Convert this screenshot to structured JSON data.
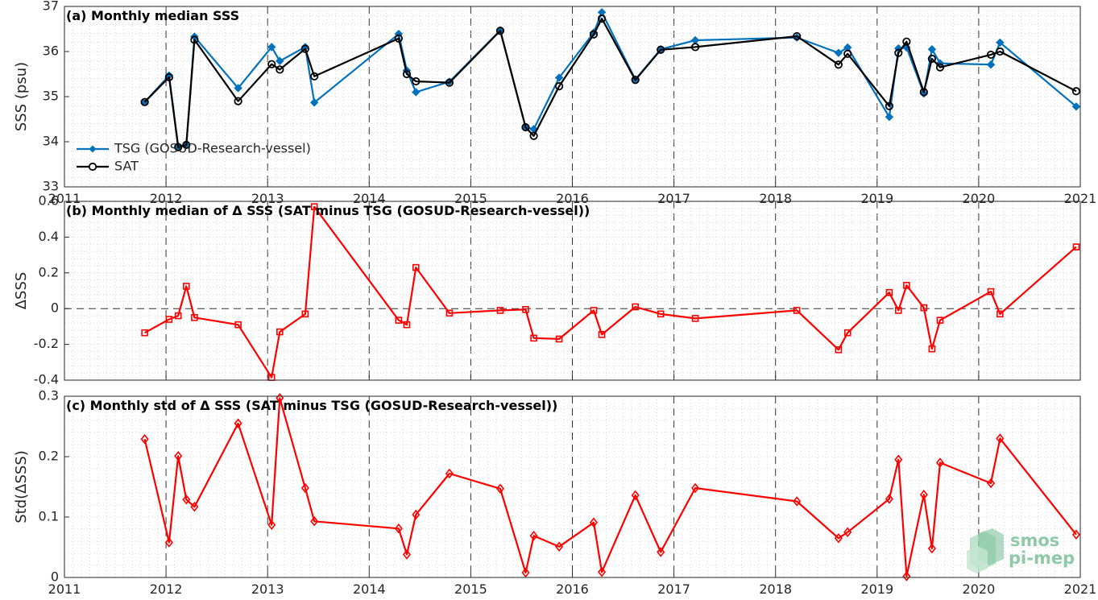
{
  "chart_data": [
    {
      "type": "line",
      "title": "(a) Monthly median SSS",
      "xlabel": "",
      "ylabel": "SSS (psu)",
      "xlim": [
        2011,
        2021
      ],
      "ylim": [
        33,
        37
      ],
      "x_ticks": [
        "2011",
        "2012",
        "2013",
        "2014",
        "2015",
        "2016",
        "2017",
        "2018",
        "2019",
        "2020",
        "2021"
      ],
      "y_ticks": [
        "33",
        "34",
        "35",
        "36",
        "37"
      ],
      "grid": true,
      "legend": "lower-left",
      "series": [
        {
          "name": "TSG (GOSUD-Research-vessel)",
          "color": "#0072BD",
          "marker": "dot",
          "x": [
            2011.79,
            2012.03,
            2012.12,
            2012.2,
            2012.28,
            2012.71,
            2013.04,
            2013.12,
            2013.37,
            2013.46,
            2014.29,
            2014.37,
            2014.46,
            2014.79,
            2015.29,
            2015.54,
            2015.62,
            2015.87,
            2016.21,
            2016.29,
            2016.62,
            2016.87,
            2017.21,
            2018.21,
            2018.62,
            2018.71,
            2019.12,
            2019.21,
            2019.29,
            2019.46,
            2019.54,
            2019.62,
            2020.12,
            2020.21,
            2020.96
          ],
          "values": [
            34.88,
            35.47,
            33.9,
            33.93,
            36.33,
            35.19,
            36.1,
            35.79,
            36.1,
            34.87,
            36.39,
            35.58,
            35.1,
            35.33,
            36.47,
            34.32,
            34.28,
            35.42,
            36.42,
            36.87,
            35.38,
            36.05,
            36.25,
            36.31,
            35.97,
            36.09,
            34.55,
            36.07,
            36.09,
            35.07,
            36.05,
            35.74,
            35.71,
            36.2,
            34.78
          ]
        },
        {
          "name": "SAT",
          "color": "#000000",
          "marker": "circle",
          "x": [
            2011.79,
            2012.03,
            2012.12,
            2012.2,
            2012.28,
            2012.71,
            2013.04,
            2013.12,
            2013.37,
            2013.46,
            2014.29,
            2014.37,
            2014.46,
            2014.79,
            2015.29,
            2015.54,
            2015.62,
            2015.87,
            2016.21,
            2016.29,
            2016.62,
            2016.87,
            2017.21,
            2018.21,
            2018.62,
            2018.71,
            2019.12,
            2019.21,
            2019.29,
            2019.46,
            2019.54,
            2019.62,
            2020.12,
            2020.21,
            2020.96
          ],
          "values": [
            34.88,
            35.43,
            33.88,
            33.93,
            36.26,
            34.9,
            35.72,
            35.6,
            36.06,
            35.45,
            36.29,
            35.5,
            35.34,
            35.31,
            36.46,
            34.32,
            34.13,
            35.23,
            36.38,
            36.73,
            35.37,
            36.04,
            36.1,
            36.34,
            35.71,
            35.95,
            34.79,
            35.97,
            36.22,
            35.1,
            35.84,
            35.65,
            35.93,
            36.0,
            35.12
          ]
        }
      ]
    },
    {
      "type": "line",
      "title": "(b) Monthly median of Δ SSS (SAT minus TSG (GOSUD-Research-vessel))",
      "xlabel": "",
      "ylabel": "ΔSSS",
      "xlim": [
        2011,
        2021
      ],
      "ylim": [
        -0.4,
        0.6
      ],
      "x_ticks": [],
      "y_ticks": [
        "-0.4",
        "-0.2",
        "0",
        "0.2",
        "0.4",
        "0.6"
      ],
      "grid": true,
      "zero_line": true,
      "series": [
        {
          "name": "",
          "color": "#FF0000",
          "marker": "square",
          "x": [
            2011.79,
            2012.03,
            2012.12,
            2012.2,
            2012.28,
            2012.71,
            2013.04,
            2013.12,
            2013.37,
            2013.46,
            2014.29,
            2014.37,
            2014.46,
            2014.79,
            2015.29,
            2015.54,
            2015.62,
            2015.87,
            2016.21,
            2016.29,
            2016.62,
            2016.87,
            2017.21,
            2018.21,
            2018.62,
            2018.71,
            2019.12,
            2019.21,
            2019.29,
            2019.46,
            2019.54,
            2019.62,
            2020.12,
            2020.21,
            2020.96
          ],
          "values": [
            -0.135,
            -0.06,
            -0.04,
            0.125,
            -0.05,
            -0.09,
            -0.385,
            -0.13,
            -0.03,
            0.57,
            -0.065,
            -0.09,
            0.23,
            -0.025,
            -0.01,
            -0.005,
            -0.165,
            -0.17,
            -0.01,
            -0.145,
            0.01,
            -0.03,
            -0.055,
            -0.01,
            -0.23,
            -0.135,
            0.09,
            -0.01,
            0.13,
            0.005,
            -0.225,
            -0.065,
            0.095,
            -0.03,
            0.345
          ]
        }
      ]
    },
    {
      "type": "line",
      "title": "(c) Monthly std of Δ SSS (SAT minus TSG (GOSUD-Research-vessel))",
      "xlabel": "",
      "ylabel": "Std(ΔSSS)",
      "xlim": [
        2011,
        2021
      ],
      "ylim": [
        0,
        0.3
      ],
      "x_ticks": [
        "2011",
        "2012",
        "2013",
        "2014",
        "2015",
        "2016",
        "2017",
        "2018",
        "2019",
        "2020",
        "2021"
      ],
      "y_ticks": [
        "0",
        "0.1",
        "0.2",
        "0.3"
      ],
      "grid": true,
      "series": [
        {
          "name": "",
          "color": "#FF0000",
          "marker": "diamond",
          "x": [
            2011.79,
            2012.03,
            2012.12,
            2012.2,
            2012.28,
            2012.71,
            2013.04,
            2013.12,
            2013.37,
            2013.46,
            2014.29,
            2014.37,
            2014.46,
            2014.79,
            2015.29,
            2015.54,
            2015.62,
            2015.87,
            2016.21,
            2016.29,
            2016.62,
            2016.87,
            2017.21,
            2018.21,
            2018.62,
            2018.71,
            2019.12,
            2019.21,
            2019.29,
            2019.46,
            2019.54,
            2019.62,
            2020.12,
            2020.21,
            2020.96
          ],
          "values": [
            0.229,
            0.058,
            0.201,
            0.129,
            0.117,
            0.255,
            0.087,
            0.297,
            0.148,
            0.093,
            0.081,
            0.038,
            0.104,
            0.172,
            0.147,
            0.008,
            0.069,
            0.051,
            0.091,
            0.009,
            0.136,
            0.042,
            0.148,
            0.126,
            0.065,
            0.075,
            0.13,
            0.195,
            0.002,
            0.137,
            0.048,
            0.19,
            0.156,
            0.23,
            0.071
          ]
        }
      ]
    }
  ],
  "logo": {
    "line1": "smos",
    "line2": "pi-mep",
    "color": "#8fc9a8"
  }
}
